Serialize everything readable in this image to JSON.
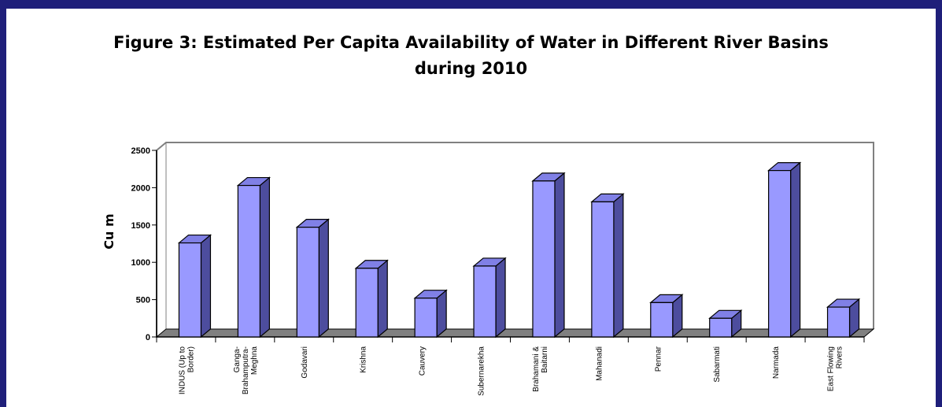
{
  "colors": {
    "frame": "#1f1f7a",
    "bar_front": "#9999ff",
    "bar_top": "#8080e6",
    "bar_side": "#4d4d9e",
    "floor": "#808080",
    "plot_border": "#808080"
  },
  "chart_data": {
    "type": "bar",
    "title": "Figure 3: Estimated Per Capita Availability of Water in Different River Basins during 2010",
    "title_lines": [
      "Figure 3: Estimated Per Capita Availability of Water in Different River Basins",
      "during 2010"
    ],
    "ylabel": "Cu m",
    "xlabel": "",
    "ylim": [
      0,
      2500
    ],
    "yticks": [
      0,
      500,
      1000,
      1500,
      2000,
      2500
    ],
    "grid": false,
    "legend": "none",
    "categories": [
      [
        "INDUS (Up to",
        "Border)"
      ],
      [
        "Ganga-",
        "Brahamputra-",
        "Meghna"
      ],
      [
        "Godavari"
      ],
      [
        "Krishna"
      ],
      [
        "Cauvery"
      ],
      [
        "Subernarekha"
      ],
      [
        "Brahamani &",
        "Baitarni"
      ],
      [
        "Mahanadi"
      ],
      [
        "Pennar"
      ],
      [
        "Sabarmati"
      ],
      [
        "Narmada"
      ],
      [
        "East Flowing",
        "Rivers"
      ]
    ],
    "values": [
      1260,
      2030,
      1470,
      920,
      520,
      950,
      2090,
      1810,
      460,
      250,
      2230,
      400
    ]
  }
}
